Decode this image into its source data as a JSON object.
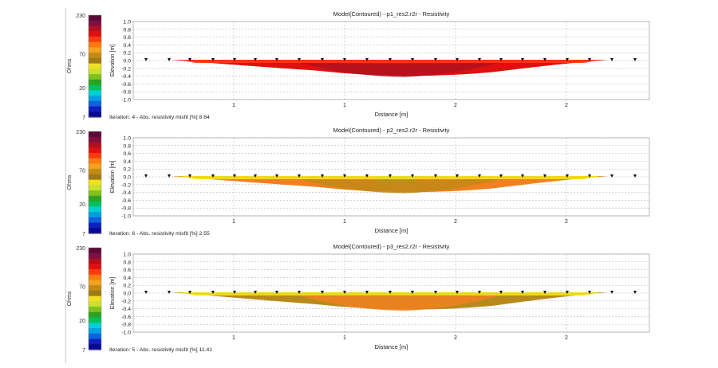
{
  "colorbar": {
    "labels": [
      "230",
      "70",
      "20",
      "7"
    ],
    "unit_label": "Ohms",
    "colors": [
      "#5a0a35",
      "#7d1040",
      "#b01020",
      "#e01010",
      "#ff3a10",
      "#ff7a10",
      "#f4a020",
      "#c08a18",
      "#a07818",
      "#f0e020",
      "#c8e030",
      "#80c020",
      "#30a020",
      "#00c060",
      "#00d0d0",
      "#00a0e0",
      "#1060e0",
      "#1020c0",
      "#0a0a90"
    ]
  },
  "chart_data": [
    {
      "type": "heatmap",
      "title": "Model(Contoured) - p1_res2.r2r - Resistivity",
      "xlabel": "Distance [m]",
      "ylabel": "Elevation [m]",
      "x_tick_labels": [
        "1",
        "1",
        "2",
        "2"
      ],
      "y_ticks": [
        "1.0",
        "0.8",
        "0.6",
        "0.4",
        "0.2",
        "0.0",
        "-0.2",
        "-0.4",
        "-0.6",
        "-0.8",
        "-1.0"
      ],
      "ylim": [
        -1.0,
        1.0
      ],
      "grid": true,
      "footer": "Iteration: 4 - Abs. resistivity misfit [%] 8.64",
      "dominant_colors": [
        "#e01010",
        "#b01020",
        "#ff3a10"
      ]
    },
    {
      "type": "heatmap",
      "title": "Model(Contoured) - p2_res2.r2r - Resistivity",
      "xlabel": "Distance [m]",
      "ylabel": "Elevation [m]",
      "x_tick_labels": [
        "1",
        "1",
        "2",
        "2"
      ],
      "y_ticks": [
        "1.0",
        "0.8",
        "0.6",
        "0.4",
        "0.2",
        "0.0",
        "-0.2",
        "-0.4",
        "-0.6",
        "-0.8",
        "-1.0"
      ],
      "ylim": [
        -1.0,
        1.0
      ],
      "grid": true,
      "footer": "Iteration: 6 - Abs. resistivity misfit [%] 2.55",
      "dominant_colors": [
        "#f08020",
        "#c08a18",
        "#f0e020"
      ]
    },
    {
      "type": "heatmap",
      "title": "Model(Contoured) - p3_res2.r2r - Resistivity",
      "xlabel": "Distance [m]",
      "ylabel": "Elevation [m]",
      "x_tick_labels": [
        "1",
        "1",
        "2",
        "2"
      ],
      "y_ticks": [
        "1.0",
        "0.8",
        "0.6",
        "0.4",
        "0.2",
        "0.0",
        "-0.2",
        "-0.4",
        "-0.6",
        "-0.8",
        "-1.0"
      ],
      "ylim": [
        -1.0,
        1.0
      ],
      "grid": true,
      "footer": "Iteration: 5 - Abs. resistivity misfit [%] 11.41",
      "dominant_colors": [
        "#b88a1c",
        "#f08020",
        "#f0e020"
      ]
    }
  ]
}
